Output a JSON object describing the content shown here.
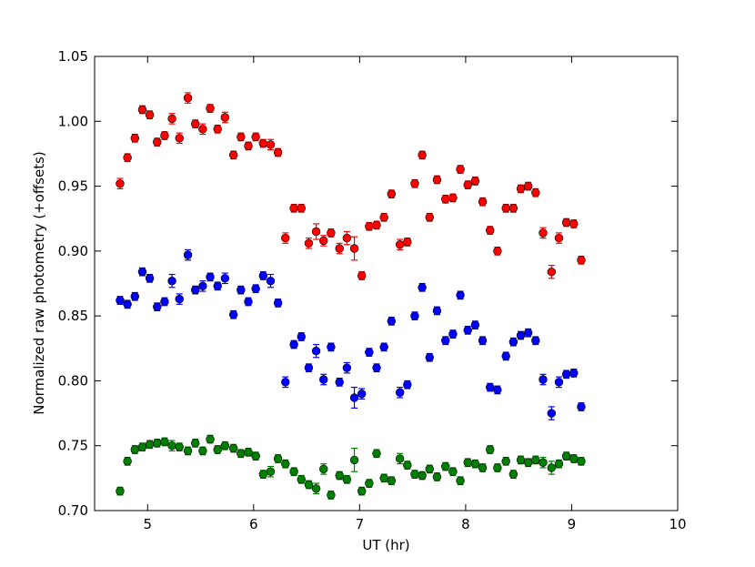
{
  "chart_data": {
    "type": "scatter",
    "xlabel": "UT (hr)",
    "ylabel": "Normalized raw photometry (+offsets)",
    "xlim": [
      4.5,
      10
    ],
    "ylim": [
      0.7,
      1.05
    ],
    "x_ticks": [
      "5",
      "6",
      "7",
      "8",
      "9",
      "10"
    ],
    "y_ticks": [
      "0.70",
      "0.75",
      "0.80",
      "0.85",
      "0.90",
      "0.95",
      "1.00",
      "1.05"
    ],
    "grid": false,
    "legend": "none",
    "series": [
      {
        "color": "#ff0000",
        "points": [
          [
            4.74,
            0.952,
            0.004
          ],
          [
            4.81,
            0.972,
            0.003
          ],
          [
            4.88,
            0.987,
            0.003
          ],
          [
            4.95,
            1.009,
            0.003
          ],
          [
            5.02,
            1.005,
            0.003
          ],
          [
            5.09,
            0.984,
            0.003
          ],
          [
            5.16,
            0.989,
            0.003
          ],
          [
            5.23,
            1.002,
            0.004
          ],
          [
            5.3,
            0.987,
            0.004
          ],
          [
            5.38,
            1.018,
            0.004
          ],
          [
            5.45,
            0.998,
            0.003
          ],
          [
            5.52,
            0.994,
            0.004
          ],
          [
            5.59,
            1.01,
            0.003
          ],
          [
            5.66,
            0.994,
            0.003
          ],
          [
            5.73,
            1.003,
            0.004
          ],
          [
            5.81,
            0.974,
            0.003
          ],
          [
            5.88,
            0.988,
            0.003
          ],
          [
            5.95,
            0.981,
            0.003
          ],
          [
            6.02,
            0.988,
            0.003
          ],
          [
            6.09,
            0.983,
            0.003
          ],
          [
            6.16,
            0.982,
            0.004
          ],
          [
            6.23,
            0.976,
            0.003
          ],
          [
            6.3,
            0.91,
            0.004
          ],
          [
            6.38,
            0.933,
            0.003
          ],
          [
            6.45,
            0.933,
            0.003
          ],
          [
            6.52,
            0.906,
            0.004
          ],
          [
            6.59,
            0.915,
            0.006
          ],
          [
            6.66,
            0.908,
            0.004
          ],
          [
            6.73,
            0.914,
            0.003
          ],
          [
            6.81,
            0.902,
            0.004
          ],
          [
            6.88,
            0.91,
            0.005
          ],
          [
            6.95,
            0.902,
            0.009
          ],
          [
            7.02,
            0.881,
            0.003
          ],
          [
            7.09,
            0.919,
            0.003
          ],
          [
            7.16,
            0.92,
            0.003
          ],
          [
            7.23,
            0.926,
            0.003
          ],
          [
            7.3,
            0.944,
            0.003
          ],
          [
            7.38,
            0.905,
            0.004
          ],
          [
            7.45,
            0.907,
            0.003
          ],
          [
            7.52,
            0.952,
            0.003
          ],
          [
            7.59,
            0.974,
            0.003
          ],
          [
            7.66,
            0.926,
            0.003
          ],
          [
            7.73,
            0.955,
            0.003
          ],
          [
            7.81,
            0.94,
            0.003
          ],
          [
            7.88,
            0.941,
            0.003
          ],
          [
            7.95,
            0.963,
            0.003
          ],
          [
            8.02,
            0.951,
            0.003
          ],
          [
            8.09,
            0.954,
            0.003
          ],
          [
            8.16,
            0.938,
            0.003
          ],
          [
            8.23,
            0.916,
            0.003
          ],
          [
            8.3,
            0.9,
            0.003
          ],
          [
            8.38,
            0.933,
            0.003
          ],
          [
            8.45,
            0.933,
            0.003
          ],
          [
            8.52,
            0.948,
            0.003
          ],
          [
            8.59,
            0.95,
            0.003
          ],
          [
            8.66,
            0.945,
            0.003
          ],
          [
            8.73,
            0.914,
            0.004
          ],
          [
            8.81,
            0.884,
            0.005
          ],
          [
            8.88,
            0.91,
            0.004
          ],
          [
            8.95,
            0.922,
            0.003
          ],
          [
            9.02,
            0.921,
            0.003
          ],
          [
            9.09,
            0.893,
            0.003
          ]
        ]
      },
      {
        "color": "#0000ff",
        "points": [
          [
            4.74,
            0.862,
            0.003
          ],
          [
            4.81,
            0.859,
            0.003
          ],
          [
            4.88,
            0.865,
            0.003
          ],
          [
            4.95,
            0.884,
            0.003
          ],
          [
            5.02,
            0.879,
            0.003
          ],
          [
            5.09,
            0.857,
            0.003
          ],
          [
            5.16,
            0.861,
            0.003
          ],
          [
            5.23,
            0.877,
            0.005
          ],
          [
            5.3,
            0.863,
            0.004
          ],
          [
            5.38,
            0.897,
            0.004
          ],
          [
            5.45,
            0.87,
            0.003
          ],
          [
            5.52,
            0.873,
            0.004
          ],
          [
            5.59,
            0.88,
            0.003
          ],
          [
            5.66,
            0.873,
            0.003
          ],
          [
            5.73,
            0.879,
            0.004
          ],
          [
            5.81,
            0.851,
            0.003
          ],
          [
            5.88,
            0.87,
            0.003
          ],
          [
            5.95,
            0.861,
            0.003
          ],
          [
            6.02,
            0.871,
            0.003
          ],
          [
            6.09,
            0.881,
            0.003
          ],
          [
            6.16,
            0.877,
            0.005
          ],
          [
            6.23,
            0.86,
            0.003
          ],
          [
            6.3,
            0.799,
            0.004
          ],
          [
            6.38,
            0.828,
            0.003
          ],
          [
            6.45,
            0.834,
            0.003
          ],
          [
            6.52,
            0.81,
            0.003
          ],
          [
            6.59,
            0.823,
            0.005
          ],
          [
            6.66,
            0.801,
            0.004
          ],
          [
            6.73,
            0.826,
            0.003
          ],
          [
            6.81,
            0.799,
            0.003
          ],
          [
            6.88,
            0.81,
            0.004
          ],
          [
            6.95,
            0.787,
            0.008
          ],
          [
            7.02,
            0.79,
            0.004
          ],
          [
            7.09,
            0.822,
            0.003
          ],
          [
            7.16,
            0.81,
            0.003
          ],
          [
            7.23,
            0.826,
            0.003
          ],
          [
            7.3,
            0.846,
            0.003
          ],
          [
            7.38,
            0.791,
            0.004
          ],
          [
            7.45,
            0.797,
            0.003
          ],
          [
            7.52,
            0.85,
            0.003
          ],
          [
            7.59,
            0.872,
            0.003
          ],
          [
            7.66,
            0.818,
            0.003
          ],
          [
            7.73,
            0.854,
            0.003
          ],
          [
            7.81,
            0.831,
            0.003
          ],
          [
            7.88,
            0.836,
            0.003
          ],
          [
            7.95,
            0.866,
            0.003
          ],
          [
            8.02,
            0.839,
            0.003
          ],
          [
            8.09,
            0.843,
            0.003
          ],
          [
            8.16,
            0.831,
            0.003
          ],
          [
            8.23,
            0.795,
            0.003
          ],
          [
            8.3,
            0.793,
            0.003
          ],
          [
            8.38,
            0.819,
            0.003
          ],
          [
            8.45,
            0.83,
            0.003
          ],
          [
            8.52,
            0.835,
            0.003
          ],
          [
            8.59,
            0.837,
            0.003
          ],
          [
            8.66,
            0.831,
            0.003
          ],
          [
            8.73,
            0.801,
            0.004
          ],
          [
            8.81,
            0.775,
            0.005
          ],
          [
            8.88,
            0.799,
            0.004
          ],
          [
            8.95,
            0.805,
            0.003
          ],
          [
            9.02,
            0.806,
            0.003
          ],
          [
            9.09,
            0.78,
            0.003
          ]
        ]
      },
      {
        "color": "#008000",
        "points": [
          [
            4.74,
            0.715,
            0.003
          ],
          [
            4.81,
            0.738,
            0.003
          ],
          [
            4.88,
            0.747,
            0.003
          ],
          [
            4.95,
            0.749,
            0.003
          ],
          [
            5.02,
            0.751,
            0.003
          ],
          [
            5.09,
            0.752,
            0.003
          ],
          [
            5.16,
            0.753,
            0.003
          ],
          [
            5.23,
            0.75,
            0.004
          ],
          [
            5.3,
            0.749,
            0.003
          ],
          [
            5.38,
            0.746,
            0.003
          ],
          [
            5.45,
            0.752,
            0.003
          ],
          [
            5.52,
            0.746,
            0.003
          ],
          [
            5.59,
            0.755,
            0.003
          ],
          [
            5.66,
            0.747,
            0.003
          ],
          [
            5.73,
            0.75,
            0.003
          ],
          [
            5.81,
            0.748,
            0.003
          ],
          [
            5.88,
            0.744,
            0.003
          ],
          [
            5.95,
            0.745,
            0.003
          ],
          [
            6.02,
            0.742,
            0.003
          ],
          [
            6.09,
            0.728,
            0.003
          ],
          [
            6.16,
            0.73,
            0.004
          ],
          [
            6.23,
            0.74,
            0.003
          ],
          [
            6.3,
            0.736,
            0.003
          ],
          [
            6.38,
            0.73,
            0.003
          ],
          [
            6.45,
            0.724,
            0.003
          ],
          [
            6.52,
            0.72,
            0.003
          ],
          [
            6.59,
            0.717,
            0.004
          ],
          [
            6.66,
            0.732,
            0.004
          ],
          [
            6.73,
            0.712,
            0.003
          ],
          [
            6.81,
            0.727,
            0.003
          ],
          [
            6.88,
            0.724,
            0.003
          ],
          [
            6.95,
            0.739,
            0.009
          ],
          [
            7.02,
            0.715,
            0.003
          ],
          [
            7.09,
            0.721,
            0.003
          ],
          [
            7.16,
            0.744,
            0.003
          ],
          [
            7.23,
            0.725,
            0.003
          ],
          [
            7.3,
            0.723,
            0.003
          ],
          [
            7.38,
            0.74,
            0.004
          ],
          [
            7.45,
            0.735,
            0.003
          ],
          [
            7.52,
            0.728,
            0.003
          ],
          [
            7.59,
            0.727,
            0.003
          ],
          [
            7.66,
            0.732,
            0.003
          ],
          [
            7.73,
            0.726,
            0.003
          ],
          [
            7.81,
            0.734,
            0.003
          ],
          [
            7.88,
            0.73,
            0.003
          ],
          [
            7.95,
            0.723,
            0.003
          ],
          [
            8.02,
            0.737,
            0.003
          ],
          [
            8.09,
            0.736,
            0.003
          ],
          [
            8.16,
            0.733,
            0.003
          ],
          [
            8.23,
            0.747,
            0.003
          ],
          [
            8.3,
            0.733,
            0.003
          ],
          [
            8.38,
            0.738,
            0.003
          ],
          [
            8.45,
            0.728,
            0.003
          ],
          [
            8.52,
            0.739,
            0.003
          ],
          [
            8.59,
            0.737,
            0.003
          ],
          [
            8.66,
            0.739,
            0.003
          ],
          [
            8.73,
            0.737,
            0.004
          ],
          [
            8.81,
            0.733,
            0.005
          ],
          [
            8.88,
            0.736,
            0.003
          ],
          [
            8.95,
            0.742,
            0.003
          ],
          [
            9.02,
            0.74,
            0.003
          ],
          [
            9.09,
            0.738,
            0.003
          ]
        ]
      }
    ]
  }
}
